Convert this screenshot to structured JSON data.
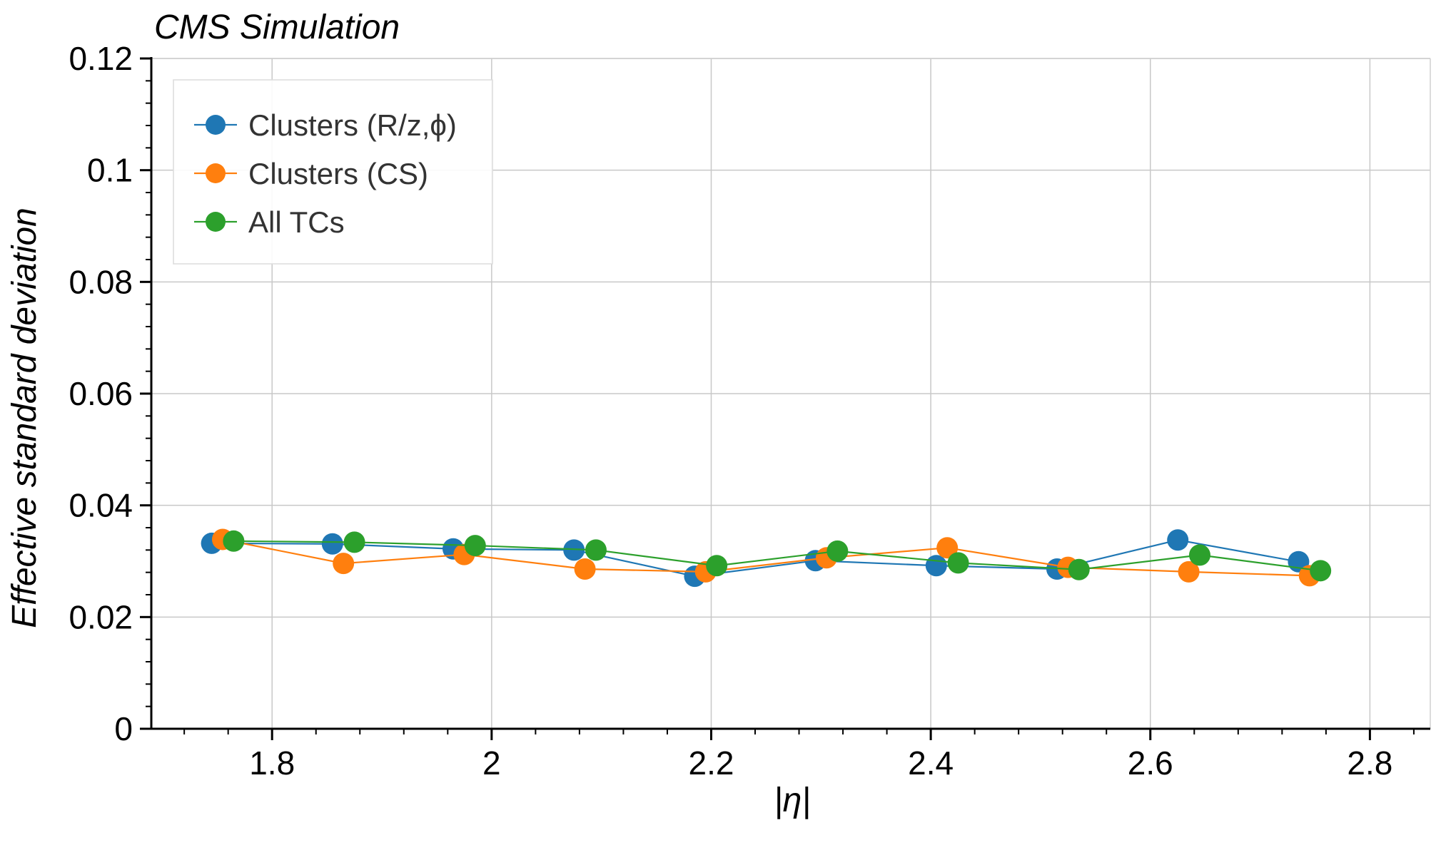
{
  "chart_data": {
    "type": "line",
    "title": "CMS Simulation",
    "xlabel": "|η|",
    "ylabel": "Effective standard deviation",
    "xlim": [
      1.69,
      2.855
    ],
    "ylim": [
      0,
      0.12
    ],
    "x_ticks": [
      1.8,
      2.0,
      2.2,
      2.4,
      2.6,
      2.8
    ],
    "x_tick_labels": [
      "1.8",
      "2",
      "2.2",
      "2.4",
      "2.6",
      "2.8"
    ],
    "y_ticks": [
      0,
      0.02,
      0.04,
      0.06,
      0.08,
      0.1,
      0.12
    ],
    "y_tick_labels": [
      "0",
      "0.02",
      "0.04",
      "0.06",
      "0.08",
      "0.1",
      "0.12"
    ],
    "grid": true,
    "legend_position": "top-left",
    "series": [
      {
        "name": "Clusters (R/z,ϕ)",
        "color": "#1f77b4",
        "x": [
          1.745,
          1.855,
          1.965,
          2.075,
          2.185,
          2.295,
          2.405,
          2.515,
          2.625,
          2.735
        ],
        "y": [
          0.0332,
          0.0331,
          0.0322,
          0.032,
          0.0273,
          0.0301,
          0.0292,
          0.0286,
          0.0338,
          0.0299
        ]
      },
      {
        "name": "Clusters (CS)",
        "color": "#ff7f0e",
        "x": [
          1.755,
          1.865,
          1.975,
          2.085,
          2.195,
          2.305,
          2.415,
          2.525,
          2.635,
          2.745
        ],
        "y": [
          0.0339,
          0.0296,
          0.0312,
          0.0286,
          0.0281,
          0.0306,
          0.0324,
          0.0289,
          0.0281,
          0.0274
        ]
      },
      {
        "name": "All TCs",
        "color": "#2ca02c",
        "x": [
          1.765,
          1.875,
          1.985,
          2.095,
          2.205,
          2.315,
          2.425,
          2.535,
          2.645,
          2.755
        ],
        "y": [
          0.0336,
          0.0334,
          0.0328,
          0.032,
          0.0292,
          0.0318,
          0.0297,
          0.0285,
          0.0311,
          0.0283
        ]
      }
    ]
  }
}
